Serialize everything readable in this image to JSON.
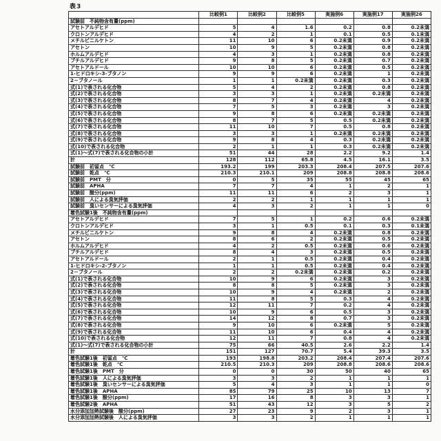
{
  "title": "表3",
  "table": {
    "corner": "",
    "columns": [
      "比較例1",
      "比較例2",
      "比較例5",
      "実施例6",
      "実施例17",
      "実施例26"
    ],
    "rows": [
      {
        "type": "section",
        "label": "試験前　不純物含有量(ppm)"
      },
      {
        "type": "data",
        "label": "アセトアルデヒド",
        "values": [
          "5",
          "4",
          "1.6",
          "0.2",
          "0.8",
          "0.2未満"
        ]
      },
      {
        "type": "data",
        "label": "クロトンアルデヒド",
        "values": [
          "4",
          "2",
          "1",
          "0.1",
          "0.5",
          "0.1未満"
        ]
      },
      {
        "type": "data",
        "label": "メチルビニルケトン",
        "values": [
          "11",
          "10",
          "6",
          "0.2未満",
          "0.9",
          "0.2未満"
        ]
      },
      {
        "type": "data",
        "label": "アセトン",
        "values": [
          "10",
          "9",
          "5",
          "0.2未満",
          "0.8",
          "0.2未満"
        ]
      },
      {
        "type": "data",
        "label": "ホルムアルデヒド",
        "values": [
          "4",
          "3",
          "1",
          "0.2未満",
          "0.8",
          "0.2未満"
        ]
      },
      {
        "type": "data",
        "label": "ブチルアルデヒド",
        "values": [
          "9",
          "8",
          "5",
          "0.2未満",
          "0.7",
          "0.2未満"
        ]
      },
      {
        "type": "data",
        "label": "アセトアルドール",
        "values": [
          "10",
          "10",
          "6",
          "0.2未満",
          "0.5",
          "0.2未満"
        ]
      },
      {
        "type": "data",
        "label": "1-ヒドロキシ-3-ブタノン",
        "values": [
          "9",
          "9",
          "6",
          "0.2未満",
          "1",
          "0.2未満"
        ]
      },
      {
        "type": "data",
        "label": "2－ブタノール",
        "values": [
          "1",
          "1",
          "0.2未満",
          "0.2未満",
          "0.3",
          "0.2未満"
        ]
      },
      {
        "type": "data",
        "label": "式(1)で表される化合物",
        "values": [
          "5",
          "4",
          "2",
          "0.2未満",
          "0.8",
          "0.2未満"
        ]
      },
      {
        "type": "data",
        "label": "式(2)で表される化合物",
        "values": [
          "3",
          "3",
          "1",
          "0.2未満",
          "0.2未満",
          "0.2未満"
        ]
      },
      {
        "type": "data",
        "label": "式(3)で表される化合物",
        "values": [
          "8",
          "7",
          "4",
          "0.2未満",
          "4",
          "0.2未満"
        ]
      },
      {
        "type": "data",
        "label": "式(4)で表される化合物",
        "values": [
          "7",
          "5",
          "3",
          "0.2未満",
          "3",
          "0.2未満"
        ]
      },
      {
        "type": "data",
        "label": "式(5)で表される化合物",
        "values": [
          "9",
          "8",
          "6",
          "0.2未満",
          "0.2未満",
          "0.2未満"
        ]
      },
      {
        "type": "data",
        "label": "式(6)で表される化合物",
        "values": [
          "8",
          "7",
          "5",
          "0.5",
          "0.2未満",
          "0.2未満"
        ]
      },
      {
        "type": "data",
        "label": "式(7)で表される化合物",
        "values": [
          "11",
          "10",
          "7",
          "0.5",
          "0.8",
          "0.2未満"
        ]
      },
      {
        "type": "data",
        "label": "式(8)で表される化合物",
        "values": [
          "3",
          "3",
          "1",
          "0.2未満",
          "0.2未満",
          "0.2未満"
        ]
      },
      {
        "type": "data",
        "label": "式(9)で表される化合物",
        "values": [
          "9",
          "8",
          "4",
          "0.3",
          "0.2未満",
          "0.2未満"
        ]
      },
      {
        "type": "data",
        "label": "式(10)で表される化合物",
        "values": [
          "2",
          "1",
          "1",
          "0.3",
          "0.2未満",
          "0.2未満"
        ]
      },
      {
        "type": "data",
        "label": "式(1)～式(7)で表される化合物の小計",
        "values": [
          "51",
          "44",
          "28",
          "2.2",
          "9.2",
          "1.4"
        ]
      },
      {
        "type": "data",
        "label": "計",
        "values": [
          "128",
          "112",
          "65.8",
          "4.5",
          "16.1",
          "3.5"
        ]
      },
      {
        "type": "data",
        "label": "試験前　初留点　℃",
        "values": [
          "193.2",
          "199",
          "203.3",
          "208.4",
          "207.5",
          "207.6"
        ]
      },
      {
        "type": "data",
        "label": "試験前　乾点　℃",
        "values": [
          "210.3",
          "210.1",
          "209",
          "208.8",
          "208.8",
          "208.6"
        ]
      },
      {
        "type": "data",
        "label": "試験前　PMT　分",
        "values": [
          "0",
          "5",
          "35",
          "55",
          "45",
          "65"
        ]
      },
      {
        "type": "data",
        "label": "試験前　APHA",
        "values": [
          "7",
          "7",
          "4",
          "1",
          "2",
          "1"
        ]
      },
      {
        "type": "data",
        "label": "試験前　酸分(ppm)",
        "values": [
          "11",
          "11",
          "6",
          "2",
          "3",
          "1"
        ]
      },
      {
        "type": "data",
        "label": "試験前　人による臭気評価",
        "values": [
          "2",
          "2",
          "1",
          "1",
          "1",
          "1"
        ]
      },
      {
        "type": "data",
        "label": "試験前　臭いセンサーによる臭気評価",
        "values": [
          "4",
          "3",
          "2",
          "1",
          "1",
          "0"
        ]
      },
      {
        "type": "section",
        "label": "着色試験1後　不純物含有量(ppm)"
      },
      {
        "type": "data",
        "label": "アセトアルデヒド",
        "values": [
          "7",
          "5",
          "1",
          "0.2",
          "0.6",
          "0.2未満"
        ]
      },
      {
        "type": "data",
        "label": "クロトンアルデヒド",
        "values": [
          "3",
          "1",
          "0.5",
          "0.1",
          "0.3",
          "0.1未満"
        ]
      },
      {
        "type": "data",
        "label": "メチルビニルケトン",
        "values": [
          "9",
          "8",
          "4",
          "0.2未満",
          "0.8",
          "0.2未満"
        ]
      },
      {
        "type": "data",
        "label": "アセトン",
        "values": [
          "8",
          "6",
          "2",
          "0.2未満",
          "0.5",
          "0.2未満"
        ]
      },
      {
        "type": "data",
        "label": "ホルムアルデヒド",
        "values": [
          "4",
          "2",
          "0.5",
          "0.2未満",
          "0.6",
          "0.2未満"
        ]
      },
      {
        "type": "data",
        "label": "ブチルアルデヒド",
        "values": [
          "8",
          "4",
          "3",
          "0.2未満",
          "0.5",
          "0.2未満"
        ]
      },
      {
        "type": "data",
        "label": "アセトアルドール",
        "values": [
          "2",
          "1",
          "0.5",
          "0.2未満",
          "0.4",
          "0.2未満"
        ]
      },
      {
        "type": "data",
        "label": "1-ヒドロキシ-2-ブタノン",
        "values": [
          "1",
          "1",
          "0.5",
          "0.2未満",
          "0.4",
          "0.2未満"
        ]
      },
      {
        "type": "data",
        "label": "2－ブタノール",
        "values": [
          "2",
          "2",
          "0.2未満",
          "0.2未満",
          "0.2",
          "0.2未満"
        ]
      },
      {
        "type": "data",
        "label": "式(1)で表される化合物",
        "values": [
          "10",
          "9",
          "6",
          "0.2未満",
          "3",
          "0.2未満"
        ]
      },
      {
        "type": "data",
        "label": "式(2)で表される化合物",
        "values": [
          "8",
          "8",
          "5",
          "0.2未満",
          "3",
          "0.2未満"
        ]
      },
      {
        "type": "data",
        "label": "式(3)で表される化合物",
        "values": [
          "10",
          "9",
          "4",
          "0.2未満",
          "2",
          "0.2未満"
        ]
      },
      {
        "type": "data",
        "label": "式(4)で表される化合物",
        "values": [
          "11",
          "8",
          "5",
          "0.3",
          "4",
          "0.2未満"
        ]
      },
      {
        "type": "data",
        "label": "式(5)で表される化合物",
        "values": [
          "12",
          "11",
          "7",
          "0.2",
          "4",
          "0.2未満"
        ]
      },
      {
        "type": "data",
        "label": "式(6)で表される化合物",
        "values": [
          "10",
          "9",
          "6",
          "0.5",
          "3",
          "0.2未満"
        ]
      },
      {
        "type": "data",
        "label": "式(7)で表される化合物",
        "values": [
          "14",
          "12",
          "8",
          "0.7",
          "3",
          "0.2未満"
        ]
      },
      {
        "type": "data",
        "label": "式(8)で表される化合物",
        "values": [
          "9",
          "10",
          "6",
          "0.2未満",
          "5",
          "0.2未満"
        ]
      },
      {
        "type": "data",
        "label": "式(9)で表される化合物",
        "values": [
          "11",
          "10",
          "6",
          "0.4",
          "4",
          "0.2未満"
        ]
      },
      {
        "type": "data",
        "label": "式(10)で表される化合物",
        "values": [
          "12",
          "11",
          "7",
          "0.8",
          "4",
          "0.2未満"
        ]
      },
      {
        "type": "data",
        "label": "式(1)～式(7)で表される化合物の小計",
        "values": [
          "75",
          "66",
          "40.5",
          "2.6",
          "2.2",
          "1.4"
        ]
      },
      {
        "type": "data",
        "label": "計",
        "values": [
          "151",
          "127",
          "70.7",
          "5.4",
          "39.3",
          "3.5"
        ]
      },
      {
        "type": "data",
        "label": "着色試験1後　初留点　℃",
        "values": [
          "193",
          "198.8",
          "203.2",
          "208.4",
          "207.4",
          "207.6"
        ]
      },
      {
        "type": "data",
        "label": "着色試験1後　乾点　℃",
        "values": [
          "210.5",
          "210.3",
          "209",
          "208.8",
          "208.6",
          "208.6"
        ]
      },
      {
        "type": "data",
        "label": "着色試験1後　PMT　分",
        "values": [
          "0",
          "0",
          "30",
          "50",
          "40",
          "65"
        ]
      },
      {
        "type": "data",
        "label": "着色試験1後　人による臭気評価",
        "values": [
          "3",
          "3",
          "2",
          "1",
          "1",
          "1"
        ]
      },
      {
        "type": "data",
        "label": "着色試験1後　臭いセンサーによる臭気評価",
        "values": [
          "5",
          "4",
          "3",
          "1",
          "1",
          "0"
        ]
      },
      {
        "type": "data",
        "label": "着色試験1後　APHA",
        "values": [
          "85",
          "79",
          "25",
          "10",
          "13",
          "7"
        ]
      },
      {
        "type": "data",
        "label": "着色試験1後　酸分(ppm)",
        "values": [
          "17",
          "16",
          "8",
          "3",
          "3",
          "1"
        ]
      },
      {
        "type": "data",
        "label": "着色試験2後　APHA",
        "values": [
          "51",
          "43",
          "12",
          "3",
          "5",
          "2"
        ]
      },
      {
        "type": "data",
        "label": "水分添加加熱試験後　酸分(ppm)",
        "values": [
          "27",
          "23",
          "9",
          "2",
          "3",
          "1"
        ]
      },
      {
        "type": "data",
        "label": "水分添加加熱試験後　人による臭気評価",
        "values": [
          "3",
          "3",
          "2",
          "1",
          "1",
          "1"
        ]
      }
    ]
  }
}
